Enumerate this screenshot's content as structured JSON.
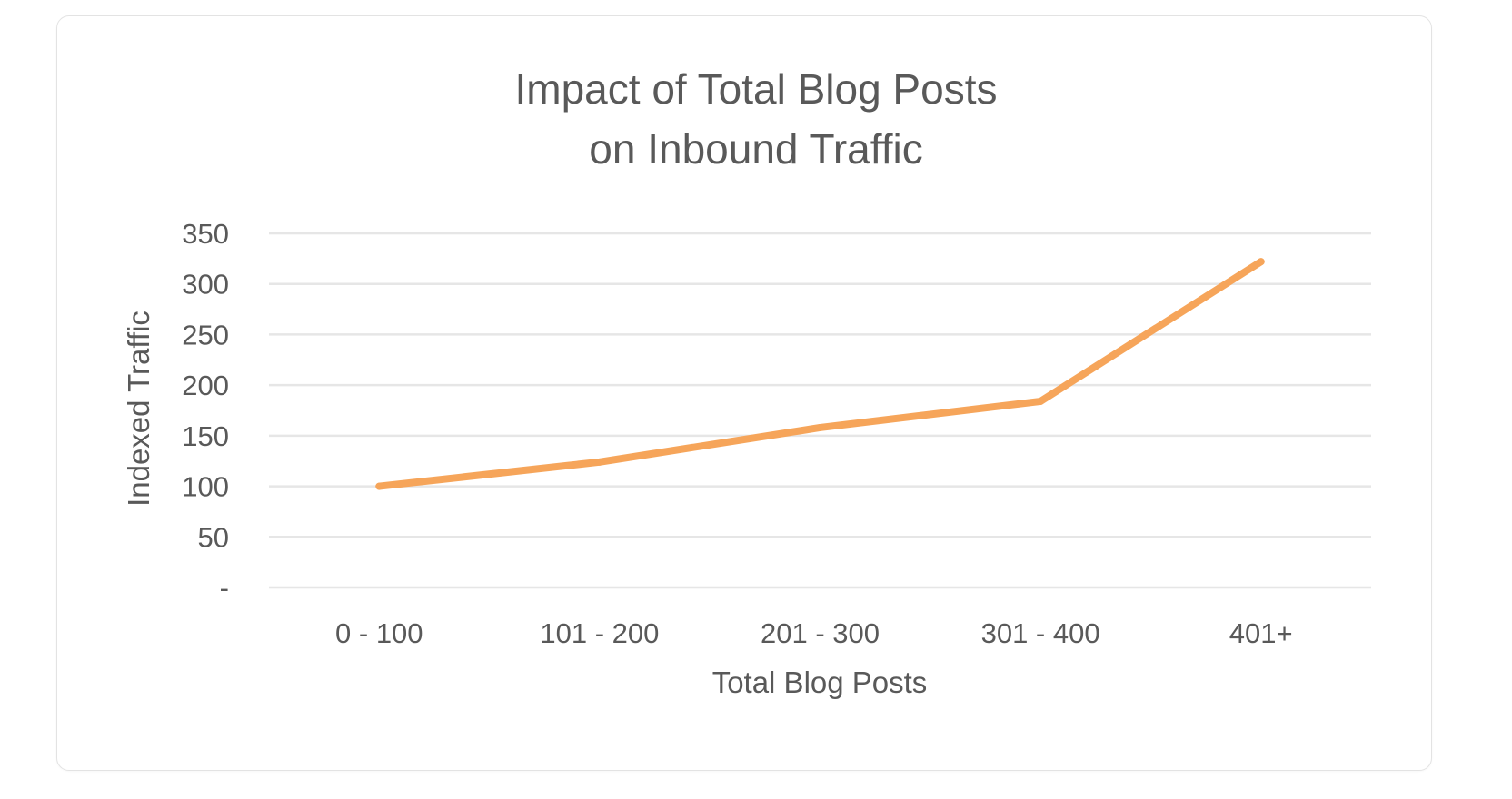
{
  "chart_data": {
    "type": "line",
    "title_lines": [
      "Impact of Total Blog Posts",
      "on Inbound Traffic"
    ],
    "xlabel": "Total Blog Posts",
    "ylabel": "Indexed Traffic",
    "categories": [
      "0 - 100",
      "101 - 200",
      "201 - 300",
      "301 - 400",
      "401+"
    ],
    "series": [
      {
        "values": [
          100,
          124,
          158,
          184,
          322
        ]
      }
    ],
    "ylim": [
      0,
      350
    ],
    "yticks": [
      0,
      50,
      100,
      150,
      200,
      250,
      300,
      350
    ],
    "ytick_labels": [
      "-",
      "50",
      "100",
      "150",
      "200",
      "250",
      "300",
      "350"
    ],
    "grid": true,
    "legend": "none",
    "line_color": "#F6A55A",
    "grid_color": "#e6e6e6",
    "text_color": "#595959"
  }
}
